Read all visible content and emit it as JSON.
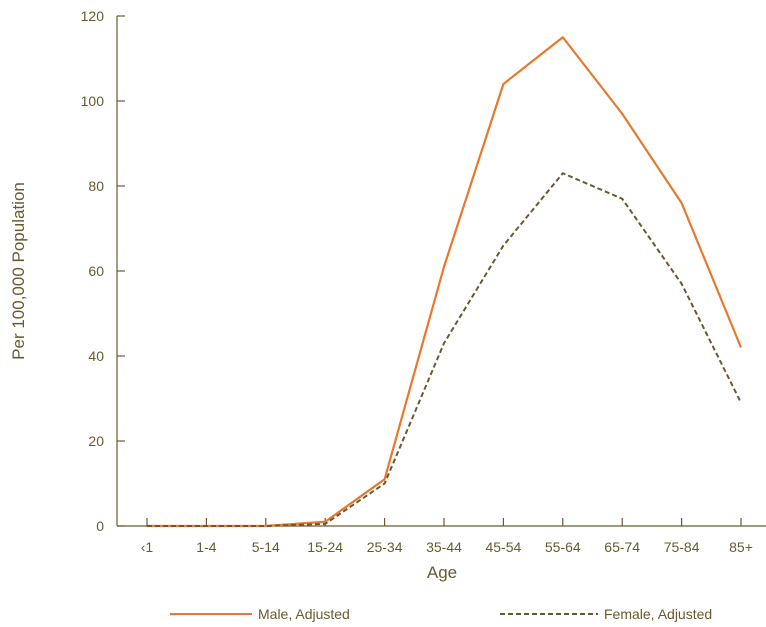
{
  "chart_data": {
    "type": "line",
    "categories": [
      "‹1",
      "1-4",
      "5-14",
      "15-24",
      "25-34",
      "35-44",
      "45-54",
      "55-64",
      "65-74",
      "75-84",
      "85+"
    ],
    "series": [
      {
        "name": "Male, Adjusted",
        "values": [
          0,
          0,
          0,
          1,
          11,
          61,
          104,
          115,
          97,
          76,
          42
        ],
        "color": "#e8782e",
        "style": "solid"
      },
      {
        "name": "Female, Adjusted",
        "values": [
          0,
          0,
          0,
          0.5,
          10,
          43,
          66,
          83,
          77,
          57,
          29
        ],
        "color": "#6b5a2e",
        "style": "dashed"
      }
    ],
    "xlabel": "Age",
    "ylabel": "Per 100,000 Population",
    "ylim": [
      0,
      120
    ],
    "yticks": [
      0,
      20,
      40,
      60,
      80,
      100,
      120
    ],
    "grid": false,
    "legend": "bottom"
  },
  "colors": {
    "axis": "#6b5a2e",
    "text": "#6b5a2e"
  }
}
